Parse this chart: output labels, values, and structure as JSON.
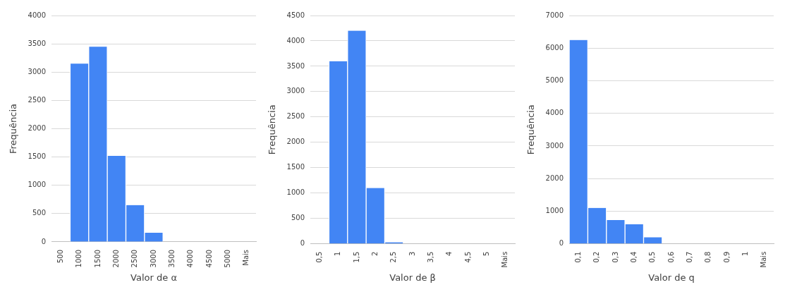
{
  "chart_data": [
    {
      "type": "bar",
      "xlabel": "Valor de α",
      "ylabel": "Frequência",
      "categories": [
        "500",
        "1000",
        "1500",
        "2000",
        "2500",
        "3000",
        "3500",
        "4000",
        "4500",
        "5000",
        "Mais"
      ],
      "values": [
        0,
        3150,
        3450,
        1520,
        650,
        160,
        0,
        0,
        0,
        0,
        0
      ],
      "color": "#4285f4",
      "ylim": [
        0,
        4000
      ],
      "yticks": [
        0,
        500,
        1000,
        1500,
        2000,
        2500,
        3000,
        3500,
        4000
      ],
      "grid": "y"
    },
    {
      "type": "bar",
      "xlabel": "Valor de β",
      "ylabel": "Frequência",
      "categories": [
        "0,5",
        "1",
        "1,5",
        "2",
        "2,5",
        "3",
        "3,5",
        "4",
        "4,5",
        "5",
        "Mais"
      ],
      "values": [
        0,
        3600,
        4200,
        1100,
        30,
        0,
        0,
        0,
        0,
        0,
        0
      ],
      "color": "#4285f4",
      "ylim": [
        0,
        4500
      ],
      "yticks": [
        0,
        500,
        1000,
        1500,
        2000,
        2500,
        3000,
        3500,
        4000,
        4500
      ],
      "grid": "y"
    },
    {
      "type": "bar",
      "xlabel": "Valor de q",
      "ylabel": "Frequência",
      "categories": [
        "0,1",
        "0,2",
        "0,3",
        "0,4",
        "0,5",
        "0,6",
        "0,7",
        "0,8",
        "0,9",
        "1",
        "Mais"
      ],
      "values": [
        6250,
        1100,
        730,
        600,
        200,
        0,
        0,
        0,
        0,
        0,
        0
      ],
      "color": "#4285f4",
      "ylim": [
        0,
        7000
      ],
      "yticks": [
        0,
        1000,
        2000,
        3000,
        4000,
        5000,
        6000,
        7000
      ],
      "grid": "y"
    }
  ]
}
